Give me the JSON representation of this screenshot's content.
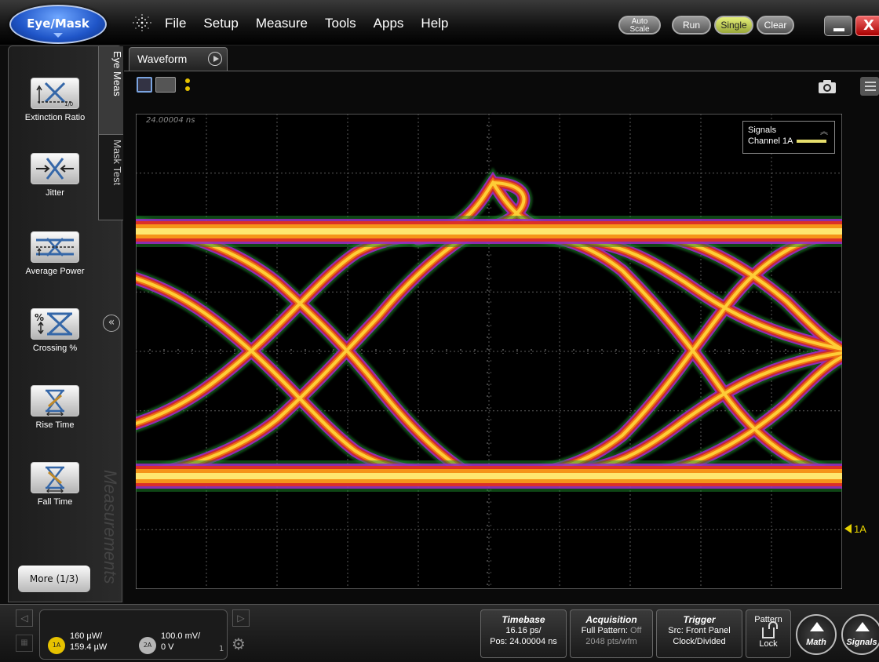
{
  "app": {
    "mode_button": "Eye/Mask",
    "menu": [
      "File",
      "Setup",
      "Measure",
      "Tools",
      "Apps",
      "Help"
    ],
    "controls": {
      "autoscale_line1": "Auto",
      "autoscale_line2": "Scale",
      "run": "Run",
      "single": "Single",
      "clear": "Clear",
      "close": "X"
    }
  },
  "left_panel": {
    "measurements": [
      {
        "label": "Extinction Ratio",
        "icon": "extinction-ratio-icon"
      },
      {
        "label": "Jitter",
        "icon": "jitter-icon"
      },
      {
        "label": "Average Power",
        "icon": "average-power-icon"
      },
      {
        "label": "Crossing %",
        "icon": "crossing-percent-icon"
      },
      {
        "label": "Rise Time",
        "icon": "rise-time-icon"
      },
      {
        "label": "Fall Time",
        "icon": "fall-time-icon"
      }
    ],
    "more": "More (1/3)",
    "tabs": {
      "eye_meas": "Eye Meas",
      "mask_test": "Mask Test"
    },
    "watermark": "Measurements"
  },
  "waveform": {
    "tab_label": "Waveform",
    "time_position": "24.00004 ns",
    "legend": {
      "title": "Signals",
      "channel": "Channel 1A",
      "channel_color": "#e6dd6c"
    },
    "channel_marker": "1A"
  },
  "bottom": {
    "ch1": {
      "badge": "1A",
      "scale": "160 µW/",
      "offset": "159.4 µW",
      "color": "#e6c200"
    },
    "ch2": {
      "badge": "2A",
      "scale": "100.0 mV/",
      "offset": "0 V"
    },
    "page": "1",
    "timebase": {
      "title": "Timebase",
      "line1": "16.16 ps/",
      "line2": "Pos: 24.00004 ns"
    },
    "acquisition": {
      "title": "Acquisition",
      "line1_label": "Full Pattern: ",
      "line1_value": "Off",
      "line2": "2048 pts/wfm"
    },
    "trigger": {
      "title": "Trigger",
      "line1": "Src: Front Panel",
      "line2": "Clock/Divided"
    },
    "pattern": {
      "title": "Pattern",
      "lock": "Lock"
    },
    "math": "Math",
    "signals": "Signals"
  }
}
